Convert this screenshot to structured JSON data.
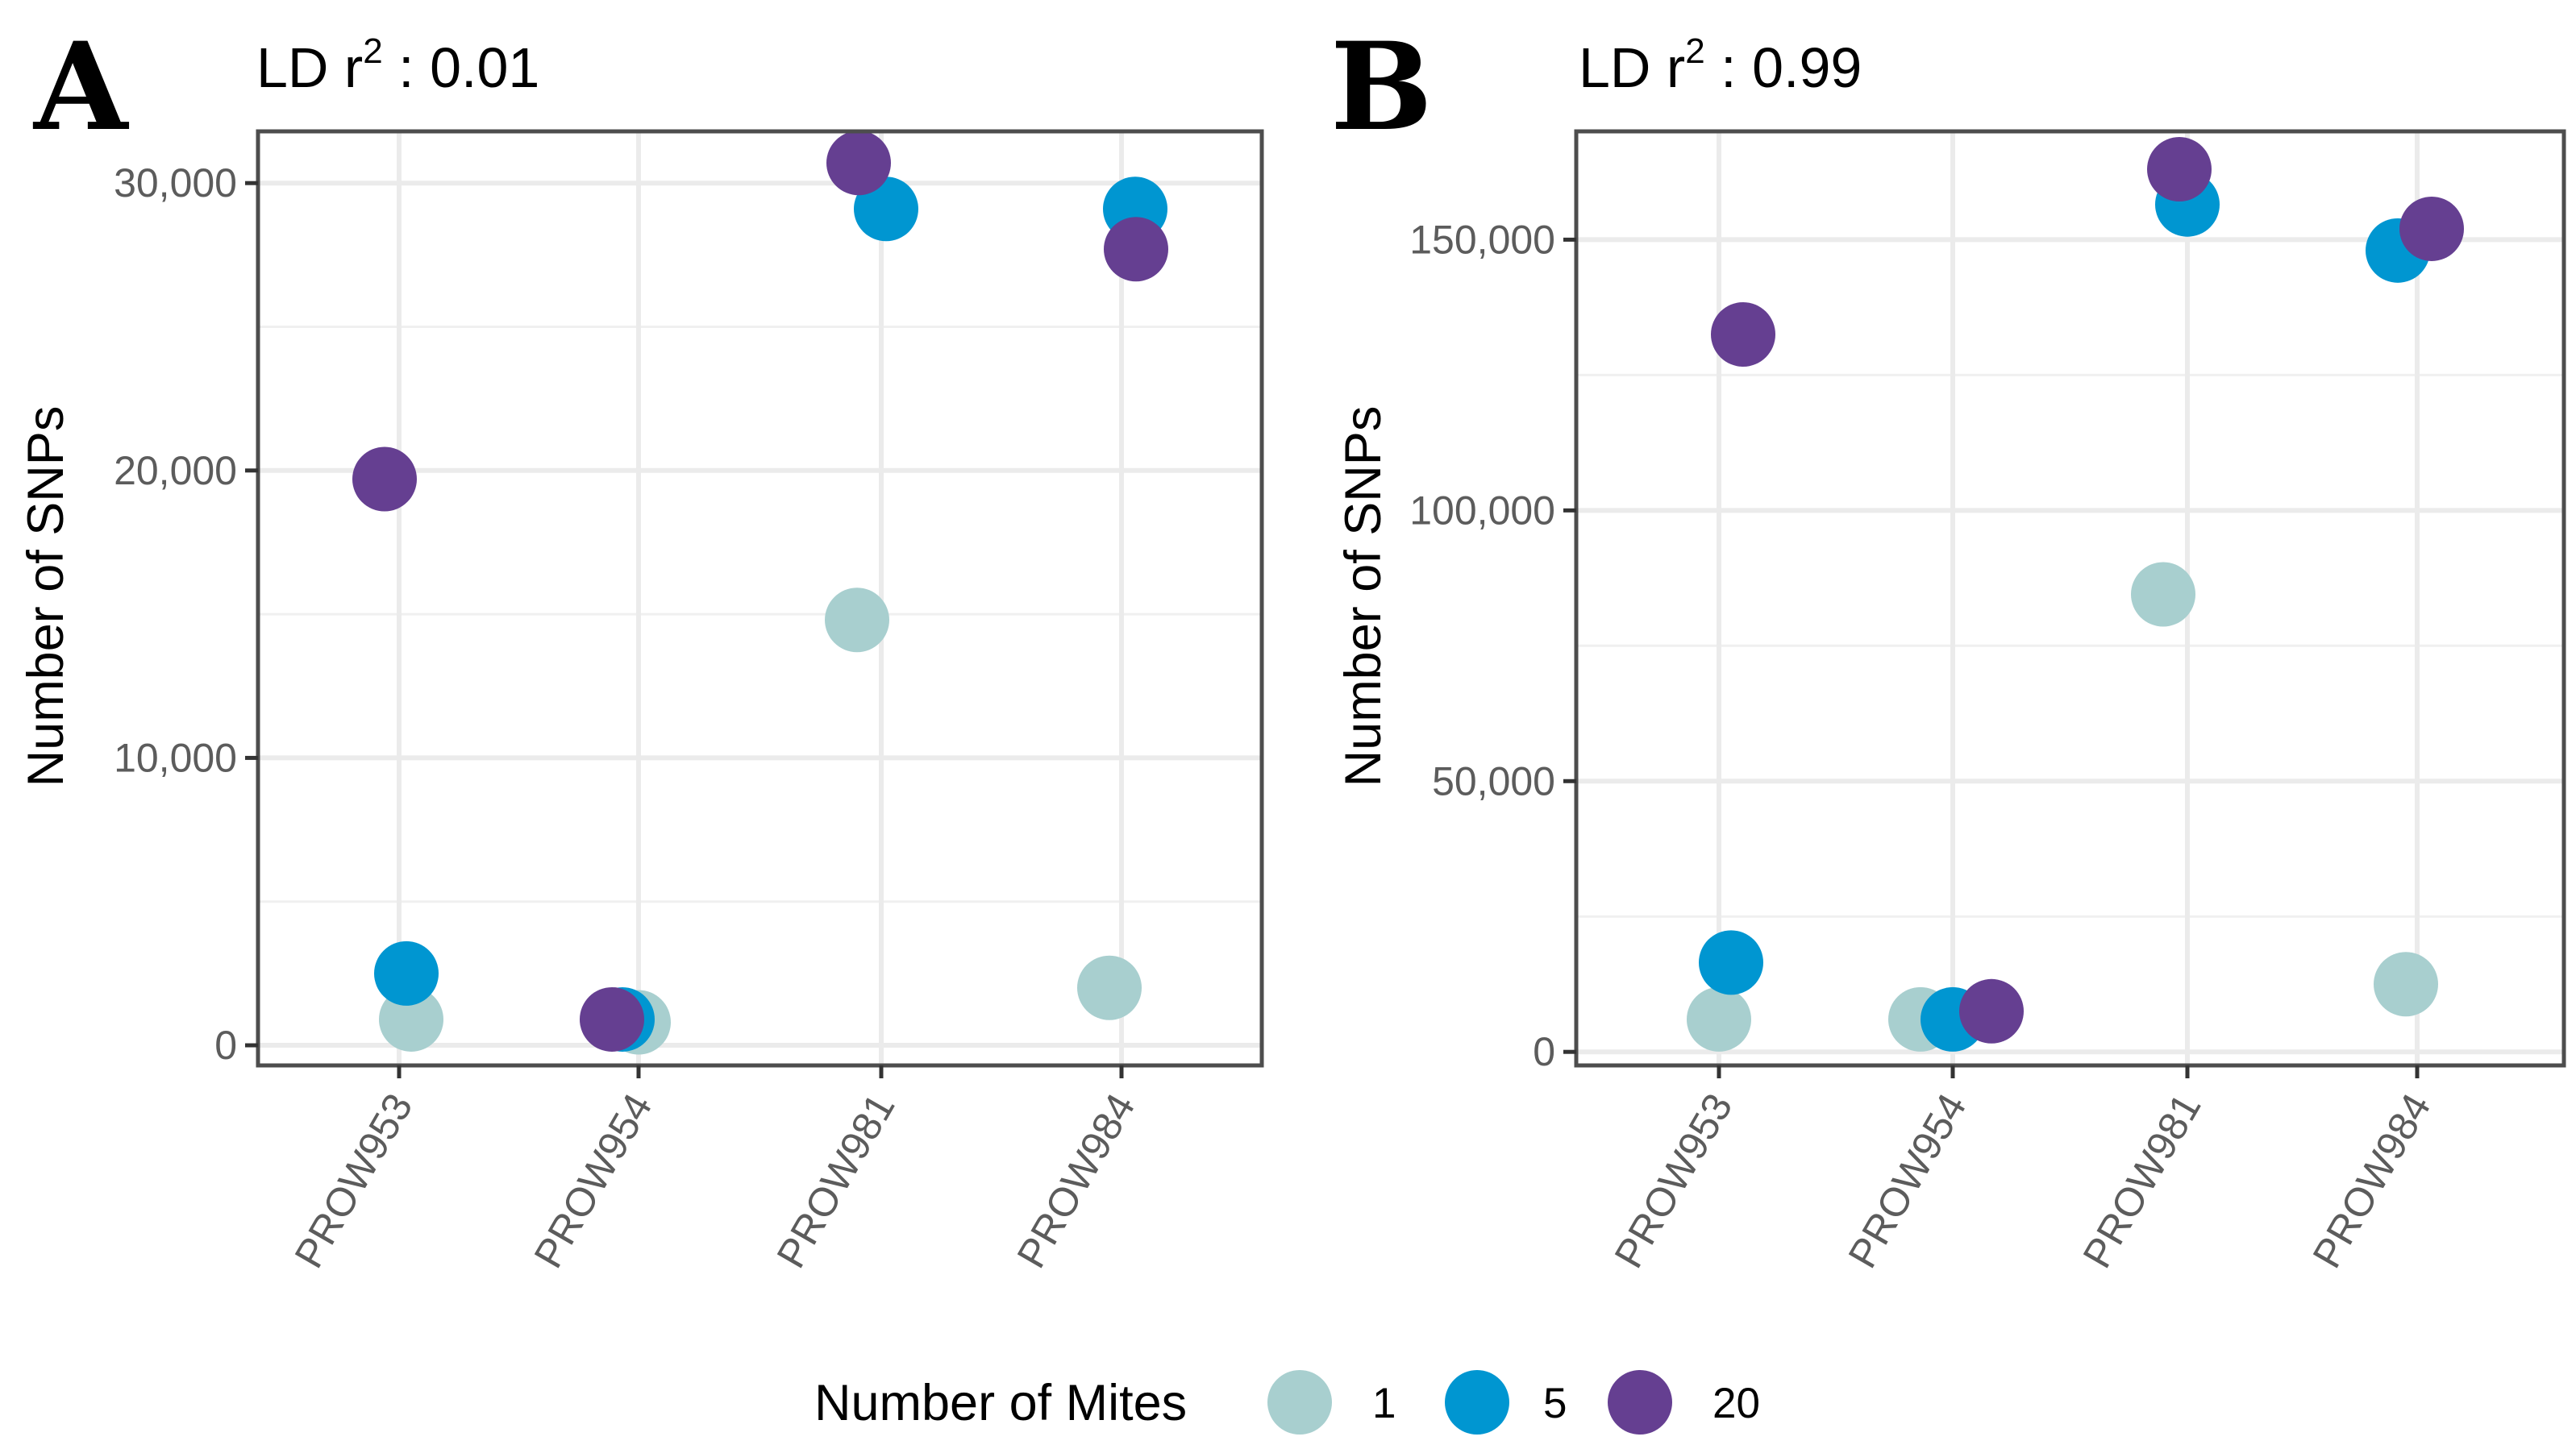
{
  "chart_data": [
    {
      "type": "scatter",
      "panel_label": "A",
      "title_prefix": "LD r",
      "title_superscript": "2",
      "title_suffix": " : 0.01",
      "xlabel": "",
      "ylabel": "Number of SNPs",
      "categories": [
        "PROW953",
        "PROW954",
        "PROW981",
        "PROW984"
      ],
      "ylim": [
        -700,
        31800
      ],
      "yticks": [
        0,
        10000,
        20000,
        30000
      ],
      "ytick_labels": [
        "0",
        "10,000",
        "20,000",
        "30,000"
      ],
      "grid": true,
      "series": [
        {
          "name": "1",
          "color": "#a8cfcf",
          "values": [
            900,
            800,
            14800,
            2000
          ]
        },
        {
          "name": "5",
          "color": "#0096d1",
          "values": [
            2500,
            900,
            29100,
            29100
          ]
        },
        {
          "name": "20",
          "color": "#653f91",
          "values": [
            19700,
            900,
            30700,
            27700
          ]
        }
      ]
    },
    {
      "type": "scatter",
      "panel_label": "B",
      "title_prefix": "LD r",
      "title_superscript": "2",
      "title_suffix": " : 0.99",
      "xlabel": "",
      "ylabel": "Number of SNPs",
      "categories": [
        "PROW953",
        "PROW954",
        "PROW981",
        "PROW984"
      ],
      "ylim": [
        -2500,
        170000
      ],
      "yticks": [
        0,
        50000,
        100000,
        150000
      ],
      "ytick_labels": [
        "0",
        "50,000",
        "100,000",
        "150,000"
      ],
      "grid": true,
      "series": [
        {
          "name": "1",
          "color": "#a8cfcf",
          "values": [
            6000,
            6000,
            84500,
            12500
          ]
        },
        {
          "name": "5",
          "color": "#0096d1",
          "values": [
            16500,
            6000,
            156500,
            148000
          ]
        },
        {
          "name": "20",
          "color": "#653f91",
          "values": [
            132500,
            7500,
            163000,
            152000
          ]
        }
      ]
    }
  ],
  "legend": {
    "title": "Number of Mites",
    "position": "bottom",
    "entries": [
      {
        "label": "1",
        "color": "#a8cfcf"
      },
      {
        "label": "5",
        "color": "#0096d1"
      },
      {
        "label": "20",
        "color": "#653f91"
      }
    ]
  }
}
